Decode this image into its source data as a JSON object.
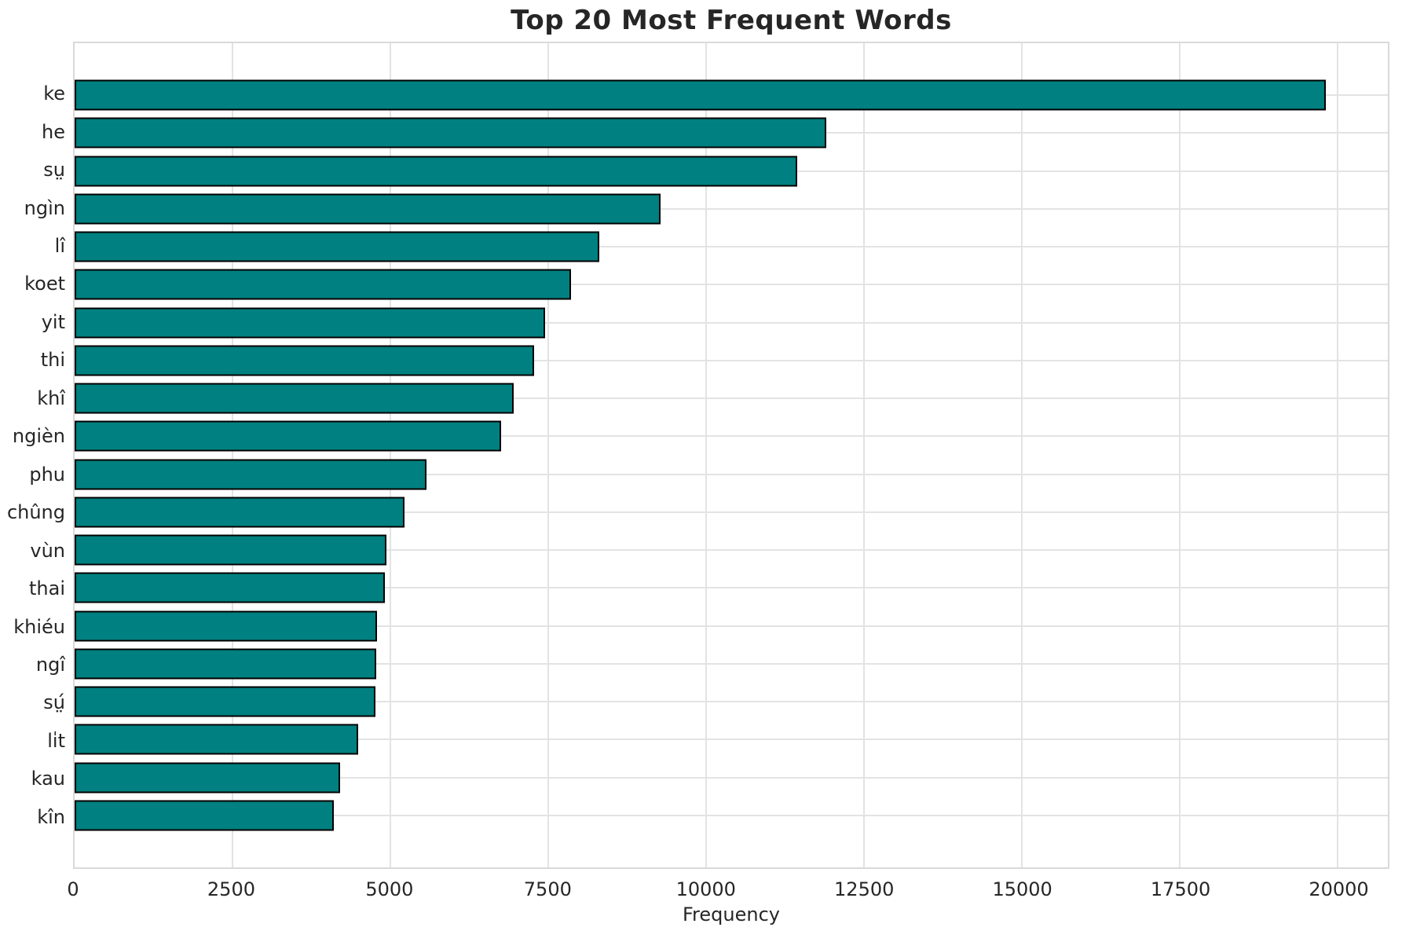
{
  "chart_data": {
    "type": "bar",
    "orientation": "horizontal",
    "title": "Top 20 Most Frequent Words",
    "xlabel": "Frequency",
    "ylabel": "",
    "categories": [
      "ke",
      "he",
      "sṳ",
      "ngìn",
      "lî",
      "koet",
      "yit",
      "thi",
      "khî",
      "ngièn",
      "phu",
      "chûng",
      "vùn",
      "thai",
      "khiéu",
      "ngî",
      "sṳ́",
      "li̍t",
      "kau",
      "kîn"
    ],
    "values": [
      19820,
      11910,
      11450,
      9280,
      8310,
      7860,
      7450,
      7280,
      6960,
      6750,
      5570,
      5220,
      4940,
      4915,
      4790,
      4780,
      4760,
      4490,
      4200,
      4105
    ],
    "x_ticks": [
      0,
      2500,
      5000,
      7500,
      10000,
      12500,
      15000,
      17500,
      20000
    ],
    "xlim": [
      0,
      20800
    ],
    "grid": true,
    "legend": "none",
    "bar_color": "#008080",
    "bar_edge_color": "#000000",
    "grid_color": "#e3e3e3",
    "background": "#ffffff"
  }
}
